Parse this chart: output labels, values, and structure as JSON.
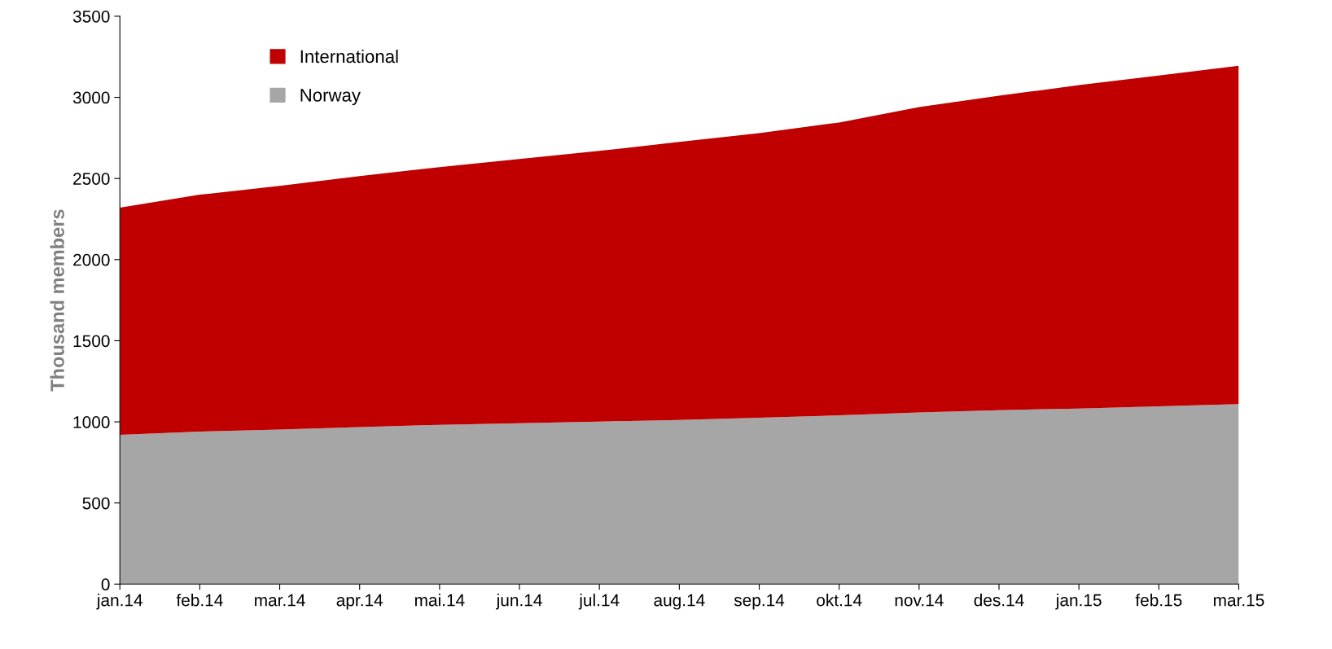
{
  "chart_data": {
    "type": "area",
    "stacked": true,
    "ylabel": "Thousand members",
    "categories": [
      "jan.14",
      "feb.14",
      "mar.14",
      "apr.14",
      "mai.14",
      "jun.14",
      "jul.14",
      "aug.14",
      "sep.14",
      "okt.14",
      "nov.14",
      "des.14",
      "jan.15",
      "feb.15",
      "mar.15"
    ],
    "series": [
      {
        "name": "Norway",
        "color": "#a6a6a6",
        "values": [
          920,
          940,
          952,
          968,
          982,
          992,
          1002,
          1012,
          1025,
          1040,
          1058,
          1072,
          1082,
          1095,
          1110
        ]
      },
      {
        "name": "International",
        "color": "#c00000",
        "values": [
          1400,
          1460,
          1503,
          1547,
          1588,
          1628,
          1668,
          1713,
          1755,
          1805,
          1882,
          1938,
          1993,
          2040,
          2085
        ]
      }
    ],
    "ylim": [
      0,
      3500
    ],
    "yticks": [
      0,
      500,
      1000,
      1500,
      2000,
      2500,
      3000,
      3500
    ],
    "grid": false,
    "legend": "top left"
  }
}
